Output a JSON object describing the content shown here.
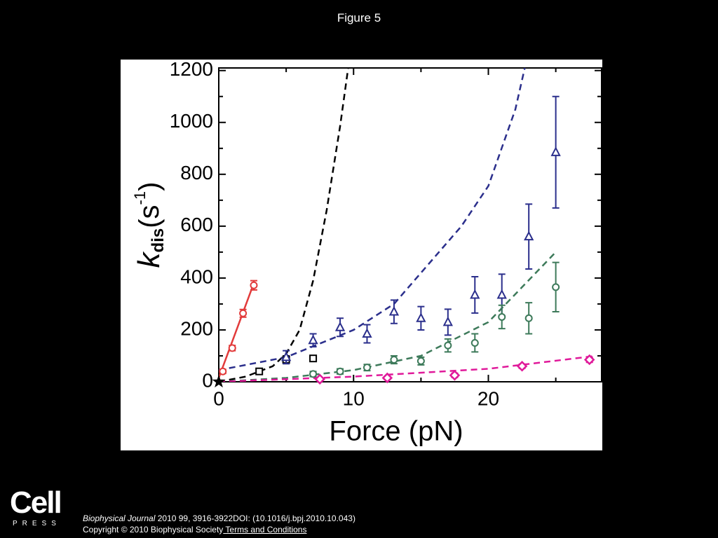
{
  "header": {
    "title": "Figure 5"
  },
  "chart_data": {
    "type": "scatter",
    "xlabel": "Force (pN)",
    "ylabel": [
      "k",
      "dis",
      "(s",
      "-1",
      ")"
    ],
    "xlim": [
      0,
      28.4
    ],
    "ylim": [
      0,
      1210
    ],
    "xticks": [
      0,
      10,
      20
    ],
    "yticks": [
      0,
      200,
      400,
      600,
      800,
      1000,
      1200
    ],
    "xminor": [
      5,
      15,
      25
    ],
    "yminor": [
      100,
      300,
      500,
      700,
      900,
      1100
    ],
    "series": [
      {
        "marker": "circle",
        "color": "#e23b3b",
        "x": [
          0.3,
          1,
          1.8,
          2.6
        ],
        "values": [
          40,
          130,
          264,
          372
        ],
        "errors": [
          8,
          10,
          15,
          18
        ]
      },
      {
        "marker": "square",
        "color": "#000000",
        "x": [
          3,
          5,
          7
        ],
        "values": [
          40,
          85,
          90
        ],
        "errors": [
          5,
          15,
          10
        ]
      },
      {
        "marker": "triangle",
        "color": "#2b2f8c",
        "x": [
          5,
          7,
          9,
          11,
          13,
          15,
          17,
          19,
          21,
          23,
          25
        ],
        "values": [
          95,
          160,
          210,
          185,
          270,
          245,
          230,
          335,
          335,
          560,
          885
        ],
        "errors": [
          25,
          25,
          35,
          35,
          45,
          45,
          50,
          70,
          80,
          125,
          215
        ]
      },
      {
        "marker": "circle",
        "color": "#3d7a5a",
        "x": [
          7,
          9,
          11,
          13,
          15,
          17,
          19,
          21,
          23,
          25
        ],
        "values": [
          30,
          40,
          55,
          85,
          80,
          140,
          150,
          250,
          245,
          365
        ],
        "errors": [
          10,
          10,
          12,
          15,
          15,
          25,
          35,
          45,
          60,
          95
        ]
      },
      {
        "marker": "diamond",
        "color": "#e0199a",
        "x": [
          7.5,
          12.5,
          17.5,
          22.5,
          27.5
        ],
        "values": [
          10,
          15,
          25,
          60,
          85
        ],
        "errors": [
          6,
          6,
          8,
          8,
          10
        ]
      },
      {
        "marker": "star",
        "color": "#000000",
        "x": [
          0
        ],
        "values": [
          0
        ],
        "errors": [
          0
        ]
      }
    ],
    "fits": [
      {
        "color": "#000000",
        "dash": true,
        "x": [
          0,
          2,
          4,
          5,
          6,
          7,
          8,
          9,
          9.6
        ],
        "values": [
          0,
          20,
          60,
          108,
          200,
          390,
          660,
          985,
          1210
        ]
      },
      {
        "color": "#2b2f8c",
        "dash": true,
        "x": [
          0,
          5,
          10,
          13,
          15,
          18,
          20,
          22,
          22.7
        ],
        "values": [
          45,
          95,
          200,
          300,
          420,
          600,
          755,
          1050,
          1210
        ]
      },
      {
        "color": "#3d7a5a",
        "dash": true,
        "x": [
          0,
          5,
          10,
          15,
          20,
          25
        ],
        "values": [
          0,
          15,
          45,
          100,
          230,
          500
        ]
      },
      {
        "color": "#e0199a",
        "dash": true,
        "x": [
          0,
          10,
          20,
          28
        ],
        "values": [
          0,
          20,
          50,
          100
        ]
      },
      {
        "color": "#e23b3b",
        "dash": false,
        "x": [
          0,
          2.6
        ],
        "values": [
          15,
          380
        ]
      }
    ]
  },
  "footer": {
    "logo": "Cell",
    "logo_sub": "PRESS",
    "journal": "Biophysical Journal",
    "citation": " 2010 99, 3916-3922DOI: (10.1016/j.bpj.2010.10.043)",
    "copyright": "Copyright © 2010 Biophysical Society",
    "link": " Terms and Conditions"
  }
}
